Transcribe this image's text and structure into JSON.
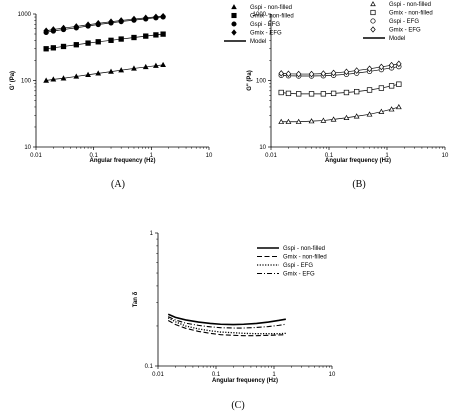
{
  "chart_data": [
    {
      "type": "scatter",
      "panel_label": "(A)",
      "xlabel": "Angular frequency (Hz)",
      "ylabel": "G' (Pa)",
      "xscale": "log",
      "yscale": "log",
      "xlim": [
        0.01,
        10
      ],
      "ylim": [
        10,
        1000
      ],
      "xticks": [
        "0.01",
        "0.1",
        "1",
        "10"
      ],
      "yticks": [
        "10",
        "100",
        "1000"
      ],
      "grid": false,
      "legend_position": "top-right",
      "series": [
        {
          "name": "Gspi - non-filled",
          "marker": "triangle",
          "x": [
            0.015,
            0.02,
            0.03,
            0.05,
            0.08,
            0.12,
            0.2,
            0.3,
            0.5,
            0.8,
            1.2,
            1.6
          ],
          "y": [
            100,
            104,
            108,
            115,
            122,
            128,
            136,
            143,
            152,
            160,
            167,
            172
          ]
        },
        {
          "name": "Gmix - non-filled",
          "marker": "square",
          "x": [
            0.015,
            0.02,
            0.03,
            0.05,
            0.08,
            0.12,
            0.2,
            0.3,
            0.5,
            0.8,
            1.2,
            1.6
          ],
          "y": [
            300,
            310,
            325,
            345,
            365,
            382,
            402,
            420,
            443,
            465,
            485,
            498
          ]
        },
        {
          "name": "Gspi - EFG",
          "marker": "circle",
          "x": [
            0.015,
            0.02,
            0.03,
            0.05,
            0.08,
            0.12,
            0.2,
            0.3,
            0.5,
            0.8,
            1.2,
            1.6
          ],
          "y": [
            530,
            555,
            585,
            620,
            660,
            695,
            735,
            770,
            810,
            845,
            880,
            905
          ]
        },
        {
          "name": "Gmix - EFG",
          "marker": "diamond",
          "x": [
            0.015,
            0.02,
            0.03,
            0.05,
            0.08,
            0.12,
            0.2,
            0.3,
            0.5,
            0.8,
            1.2,
            1.6
          ],
          "y": [
            560,
            585,
            615,
            650,
            690,
            725,
            765,
            800,
            840,
            875,
            905,
            925
          ]
        },
        {
          "name": "Model",
          "marker": "line"
        }
      ]
    },
    {
      "type": "scatter",
      "panel_label": "(B)",
      "xlabel": "Angular frequency (Hz)",
      "ylabel": "G\" (Pa)",
      "xscale": "log",
      "yscale": "log",
      "xlim": [
        0.01,
        10
      ],
      "ylim": [
        10,
        1000
      ],
      "xticks": [
        "0.01",
        "0.1",
        "1",
        "10"
      ],
      "yticks": [
        "10",
        "100",
        "1000"
      ],
      "grid": false,
      "legend_position": "top-right",
      "series": [
        {
          "name": "Gspi - non-filled",
          "marker": "triangle",
          "x": [
            0.015,
            0.02,
            0.03,
            0.05,
            0.08,
            0.12,
            0.2,
            0.3,
            0.5,
            0.8,
            1.2,
            1.6
          ],
          "y": [
            24,
            24,
            24,
            24.5,
            25,
            26,
            27.5,
            29,
            31,
            34,
            37,
            40
          ]
        },
        {
          "name": "Gmix - non-filled",
          "marker": "square",
          "x": [
            0.015,
            0.02,
            0.03,
            0.05,
            0.08,
            0.12,
            0.2,
            0.3,
            0.5,
            0.8,
            1.2,
            1.6
          ],
          "y": [
            66,
            64,
            63,
            63,
            63,
            64,
            66,
            68,
            72,
            77,
            83,
            88
          ]
        },
        {
          "name": "Gspi - EFG",
          "marker": "circle",
          "x": [
            0.015,
            0.02,
            0.03,
            0.05,
            0.08,
            0.12,
            0.2,
            0.3,
            0.5,
            0.8,
            1.2,
            1.6
          ],
          "y": [
            120,
            118,
            117,
            117,
            118,
            120,
            124,
            129,
            137,
            146,
            155,
            162
          ]
        },
        {
          "name": "Gmix - EFG",
          "marker": "diamond",
          "x": [
            0.015,
            0.02,
            0.03,
            0.05,
            0.08,
            0.12,
            0.2,
            0.3,
            0.5,
            0.8,
            1.2,
            1.6
          ],
          "y": [
            128,
            126,
            125,
            125,
            127,
            130,
            135,
            141,
            150,
            160,
            170,
            178
          ]
        },
        {
          "name": "Model",
          "marker": "line"
        }
      ]
    },
    {
      "type": "line",
      "panel_label": "(C)",
      "xlabel": "Angular frequency (Hz)",
      "ylabel": "Tan δ",
      "xscale": "log",
      "yscale": "log",
      "xlim": [
        0.01,
        10
      ],
      "ylim": [
        0.1,
        1
      ],
      "xticks": [
        "0.01",
        "0.1",
        "1",
        "10"
      ],
      "yticks": [
        "0.1",
        "1"
      ],
      "grid": false,
      "legend_position": "top-right",
      "series": [
        {
          "name": "Gspi - non-filled",
          "style": "solid",
          "x": [
            0.015,
            0.02,
            0.03,
            0.05,
            0.08,
            0.12,
            0.2,
            0.3,
            0.5,
            0.8,
            1.2,
            1.6
          ],
          "y": [
            0.245,
            0.232,
            0.222,
            0.214,
            0.209,
            0.206,
            0.205,
            0.206,
            0.209,
            0.214,
            0.22,
            0.225
          ]
        },
        {
          "name": "Gmix - non-filled",
          "style": "dashed",
          "x": [
            0.015,
            0.02,
            0.03,
            0.05,
            0.08,
            0.12,
            0.2,
            0.3,
            0.5,
            0.8,
            1.2,
            1.6
          ],
          "y": [
            0.22,
            0.205,
            0.192,
            0.182,
            0.176,
            0.172,
            0.17,
            0.169,
            0.169,
            0.17,
            0.171,
            0.172
          ]
        },
        {
          "name": "Gspi - EFG",
          "style": "dotted",
          "x": [
            0.015,
            0.02,
            0.03,
            0.05,
            0.08,
            0.12,
            0.2,
            0.3,
            0.5,
            0.8,
            1.2,
            1.6
          ],
          "y": [
            0.23,
            0.215,
            0.2,
            0.19,
            0.184,
            0.18,
            0.178,
            0.176,
            0.175,
            0.175,
            0.175,
            0.176
          ]
        },
        {
          "name": "Gmix - EFG",
          "style": "dashdot",
          "x": [
            0.015,
            0.02,
            0.03,
            0.05,
            0.08,
            0.12,
            0.2,
            0.3,
            0.5,
            0.8,
            1.2,
            1.6
          ],
          "y": [
            0.235,
            0.222,
            0.21,
            0.202,
            0.197,
            0.194,
            0.193,
            0.193,
            0.195,
            0.198,
            0.202,
            0.206
          ]
        }
      ]
    }
  ]
}
